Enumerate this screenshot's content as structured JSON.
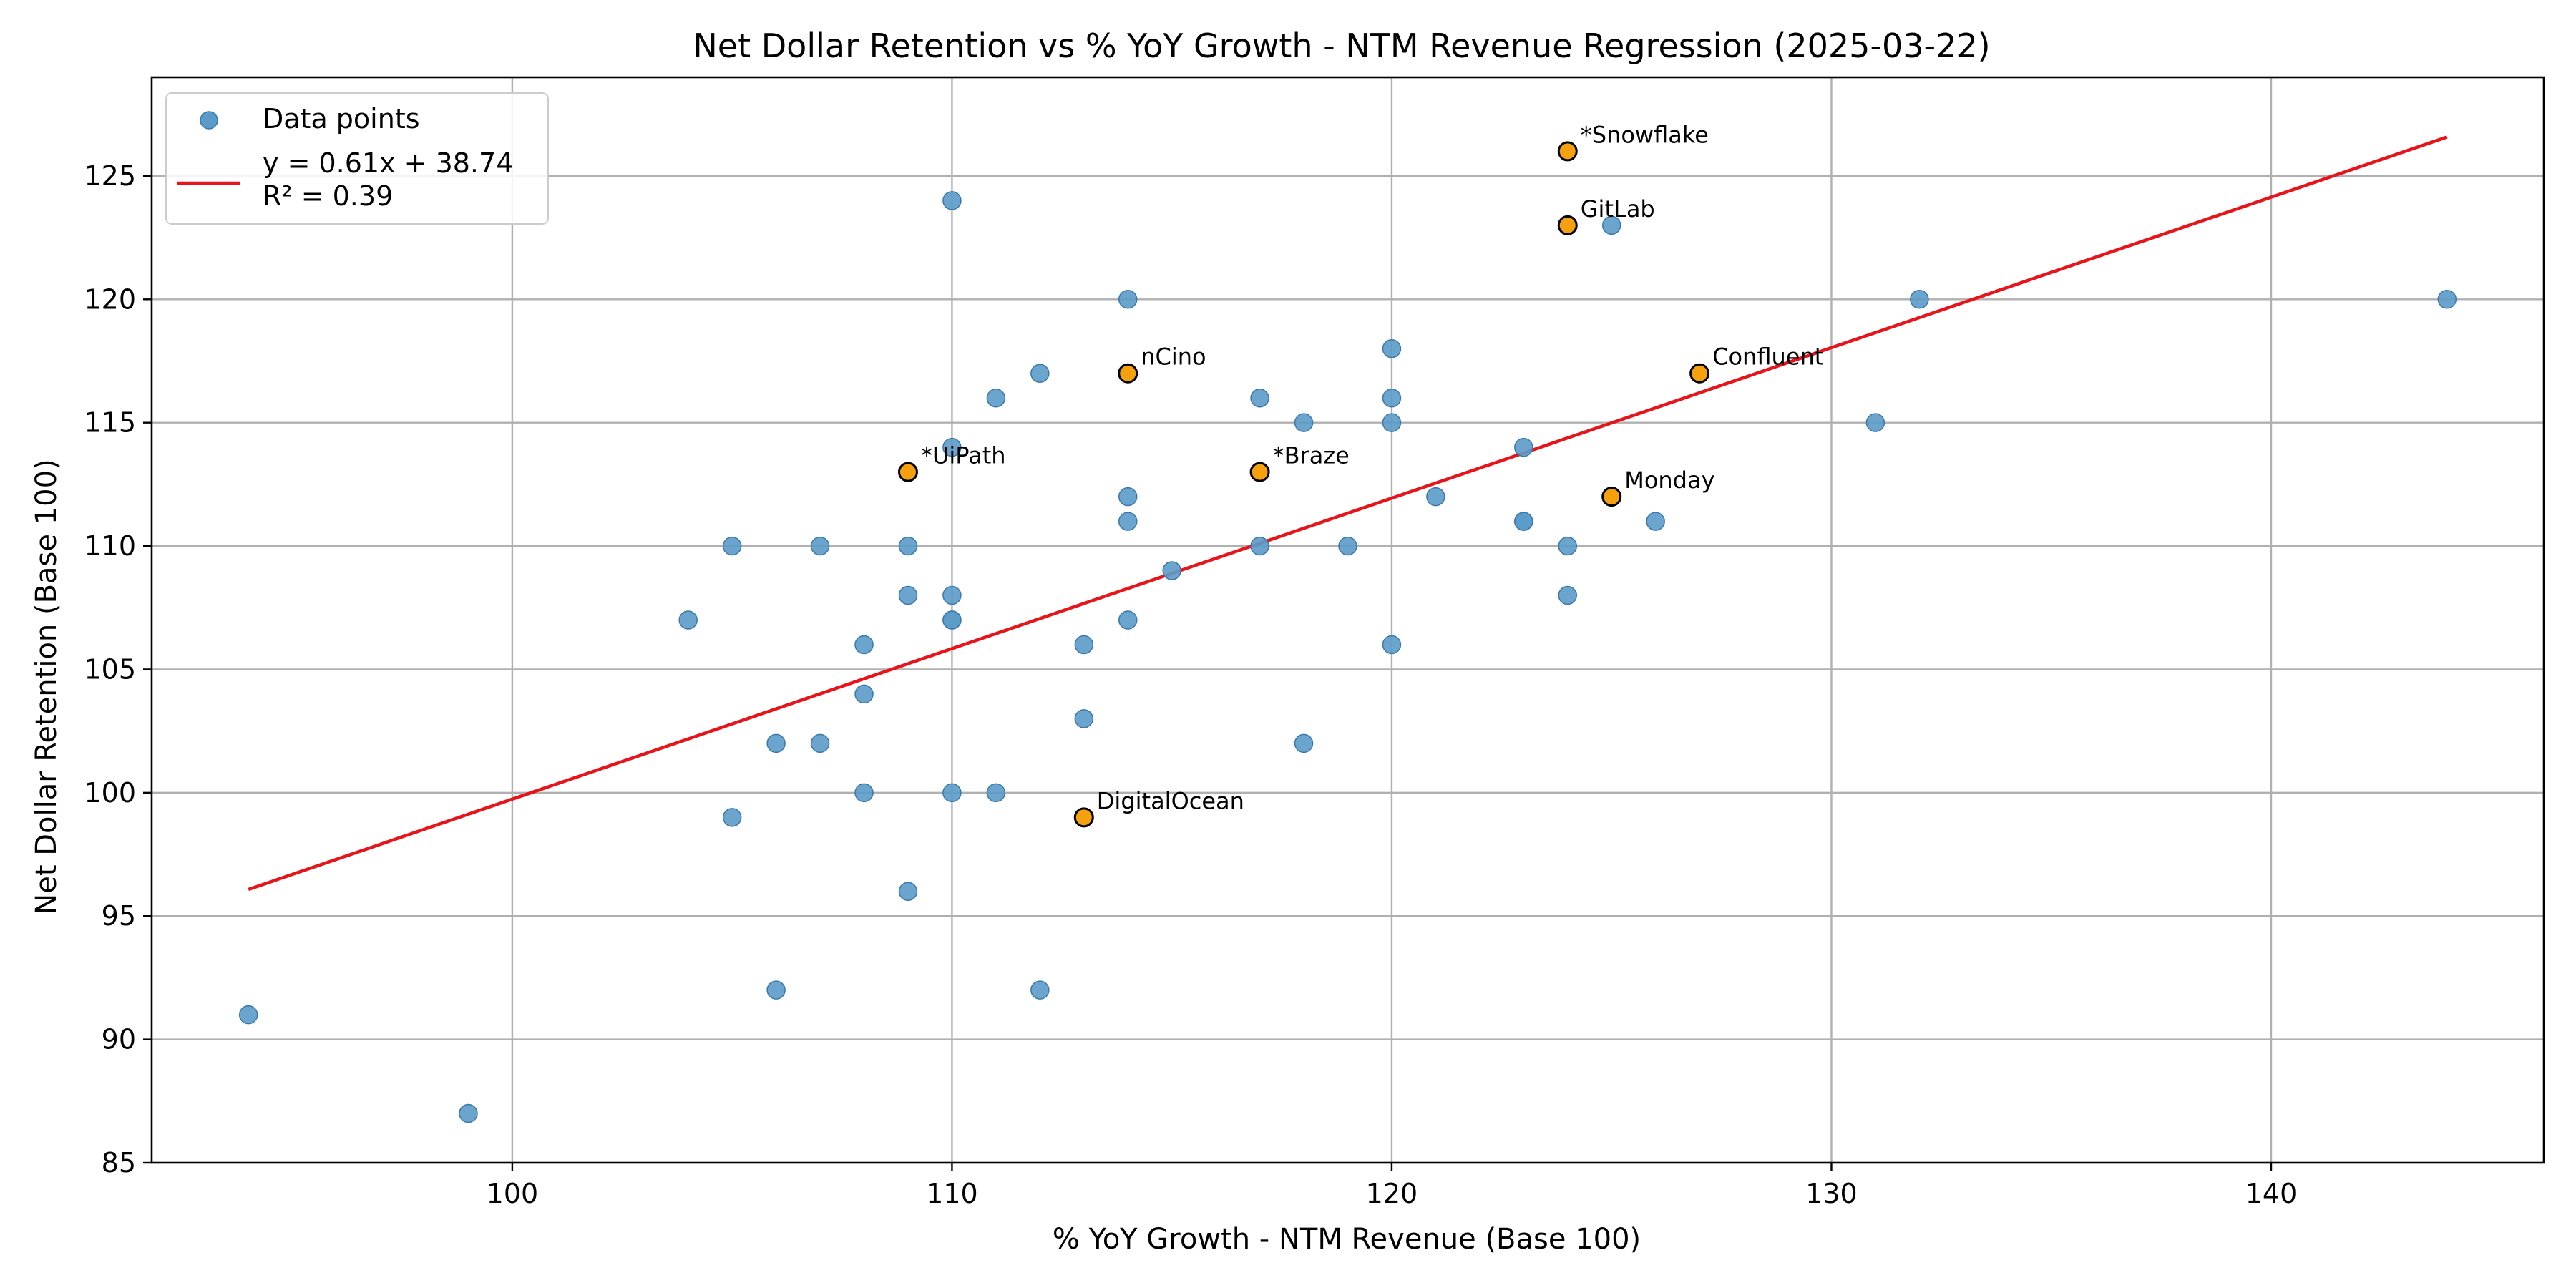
{
  "chart_data": {
    "type": "scatter",
    "title": "Net Dollar Retention vs % YoY Growth - NTM Revenue Regression (2025-03-22)",
    "xlabel": "% YoY Growth - NTM Revenue (Base 100)",
    "ylabel": "Net Dollar Retention (Base 100)",
    "xlim": [
      91.8,
      146.2
    ],
    "ylim": [
      85,
      129
    ],
    "xticks": [
      100,
      110,
      120,
      130,
      140
    ],
    "yticks": [
      85,
      90,
      95,
      100,
      105,
      110,
      115,
      120,
      125
    ],
    "grid": true,
    "legend": {
      "position": "top-left",
      "entries": [
        {
          "label": "Data points"
        },
        {
          "label": "y = 0.61x + 38.74",
          "label2": "R² = 0.39"
        }
      ]
    },
    "colors": {
      "points": "#5b9bc9",
      "points_edge": "#3a78ad",
      "highlight": "#f5a00f",
      "highlight_edge": "#000000",
      "regression": "#e8141b",
      "grid": "#b0b0b0"
    },
    "series": [
      {
        "name": "Data points",
        "points": [
          [
            94,
            91
          ],
          [
            99,
            87
          ],
          [
            104,
            107
          ],
          [
            105,
            110
          ],
          [
            105,
            99
          ],
          [
            106,
            102
          ],
          [
            106,
            92
          ],
          [
            107,
            110
          ],
          [
            107,
            102
          ],
          [
            108,
            106
          ],
          [
            108,
            104
          ],
          [
            108,
            100
          ],
          [
            109,
            110
          ],
          [
            109,
            108
          ],
          [
            109,
            96
          ],
          [
            110,
            124
          ],
          [
            110,
            114
          ],
          [
            110,
            108
          ],
          [
            110,
            107
          ],
          [
            110,
            107
          ],
          [
            110,
            100
          ],
          [
            111,
            116
          ],
          [
            111,
            100
          ],
          [
            112,
            117
          ],
          [
            112,
            92
          ],
          [
            113,
            106
          ],
          [
            113,
            103
          ],
          [
            114,
            120
          ],
          [
            114,
            112
          ],
          [
            114,
            111
          ],
          [
            114,
            107
          ],
          [
            115,
            109
          ],
          [
            117,
            116
          ],
          [
            117,
            110
          ],
          [
            118,
            115
          ],
          [
            118,
            102
          ],
          [
            119,
            110
          ],
          [
            120,
            118
          ],
          [
            120,
            116
          ],
          [
            120,
            115
          ],
          [
            120,
            106
          ],
          [
            121,
            112
          ],
          [
            123,
            114
          ],
          [
            123,
            111
          ],
          [
            123,
            111
          ],
          [
            124,
            110
          ],
          [
            124,
            108
          ],
          [
            125,
            123
          ],
          [
            126,
            111
          ],
          [
            131,
            115
          ],
          [
            132,
            120
          ],
          [
            144,
            120
          ]
        ]
      }
    ],
    "highlighted": [
      {
        "label": "*Snowflake",
        "x": 124,
        "y": 126
      },
      {
        "label": "GitLab",
        "x": 124,
        "y": 123
      },
      {
        "label": "nCino",
        "x": 114,
        "y": 117
      },
      {
        "label": "Confluent",
        "x": 127,
        "y": 117
      },
      {
        "label": "*UiPath",
        "x": 109,
        "y": 113
      },
      {
        "label": "*Braze",
        "x": 117,
        "y": 113
      },
      {
        "label": "Monday",
        "x": 125,
        "y": 112
      },
      {
        "label": "DigitalOcean",
        "x": 113,
        "y": 99
      }
    ],
    "regression": {
      "slope": 0.61,
      "intercept": 38.74,
      "r2": 0.39,
      "x_range": [
        94,
        144
      ]
    }
  }
}
